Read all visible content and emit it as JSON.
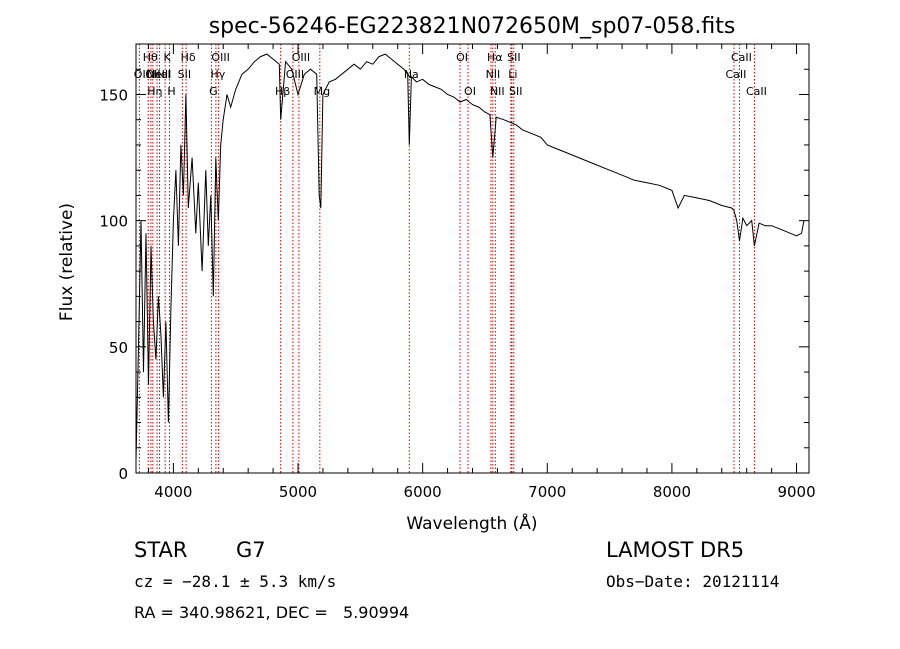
{
  "colors": {
    "background": "#ffffff",
    "axis": "#000000",
    "spectrum": "#000000",
    "line_marker": "#cc0000"
  },
  "chart_data": {
    "type": "line",
    "title": "spec-56246-EG223821N072650M_sp07-058.fits",
    "xlabel": "Wavelength (Å)",
    "ylabel": "Flux (relative)",
    "xlim": [
      3700,
      9100
    ],
    "ylim": [
      0,
      170
    ],
    "xticks": [
      4000,
      5000,
      6000,
      7000,
      8000,
      9000
    ],
    "yticks": [
      0,
      50,
      100,
      150
    ],
    "grid": false,
    "series": [
      {
        "x": [
          3700,
          3720,
          3740,
          3760,
          3780,
          3800,
          3820,
          3840,
          3860,
          3880,
          3900,
          3920,
          3940,
          3960,
          3980,
          4000,
          4020,
          4040,
          4060,
          4080,
          4100,
          4120,
          4150,
          4180,
          4200,
          4230,
          4260,
          4280,
          4300,
          4320,
          4340,
          4360,
          4380,
          4400,
          4430,
          4460,
          4500,
          4550,
          4600,
          4650,
          4700,
          4750,
          4800,
          4850,
          4861,
          4900,
          4950,
          5000,
          5050,
          5100,
          5150,
          5170,
          5183,
          5200,
          5250,
          5300,
          5350,
          5400,
          5450,
          5500,
          5550,
          5600,
          5650,
          5700,
          5750,
          5800,
          5850,
          5880,
          5893,
          5910,
          5950,
          6000,
          6050,
          6100,
          6150,
          6200,
          6250,
          6300,
          6350,
          6400,
          6450,
          6500,
          6540,
          6563,
          6590,
          6650,
          6700,
          6750,
          6800,
          6850,
          6900,
          6950,
          7000,
          7050,
          7100,
          7150,
          7200,
          7300,
          7400,
          7500,
          7600,
          7700,
          7800,
          7900,
          8000,
          8050,
          8100,
          8200,
          8300,
          8400,
          8480,
          8498,
          8520,
          8542,
          8570,
          8600,
          8640,
          8662,
          8700,
          8750,
          8800,
          8850,
          8900,
          8950,
          9000,
          9040,
          9060
        ],
        "y": [
          5,
          50,
          100,
          40,
          95,
          35,
          90,
          60,
          45,
          70,
          55,
          30,
          60,
          20,
          65,
          100,
          120,
          90,
          130,
          110,
          150,
          105,
          125,
          95,
          115,
          80,
          120,
          90,
          110,
          70,
          125,
          100,
          130,
          140,
          150,
          145,
          152,
          158,
          160,
          163,
          165,
          166,
          164,
          162,
          140,
          163,
          160,
          150,
          158,
          160,
          158,
          110,
          105,
          150,
          155,
          156,
          158,
          160,
          162,
          160,
          163,
          162,
          165,
          166,
          164,
          162,
          160,
          158,
          130,
          157,
          155,
          156,
          154,
          153,
          152,
          150,
          149,
          147,
          148,
          146,
          145,
          143,
          142,
          125,
          141,
          140,
          139,
          138,
          136,
          135,
          134,
          133,
          130,
          129,
          128,
          127,
          126,
          124,
          122,
          120,
          118,
          116,
          115,
          114,
          112,
          105,
          110,
          109,
          108,
          106,
          105,
          104,
          100,
          92,
          101,
          98,
          100,
          90,
          99,
          98,
          98,
          97,
          96,
          95,
          94,
          95,
          100
        ]
      }
    ],
    "lines": [
      {
        "x": 3727,
        "label": "OII",
        "row": 2
      },
      {
        "x": 3798,
        "label": "Hθ",
        "row": 1
      },
      {
        "x": 3820,
        "label": "OII",
        "row": 2
      },
      {
        "x": 3835,
        "label": "Hη",
        "row": 3
      },
      {
        "x": 3869,
        "label": "NeIII",
        "row": 2
      },
      {
        "x": 3889,
        "label": "HeI",
        "row": 2
      },
      {
        "x": 3934,
        "label": "K",
        "row": 1
      },
      {
        "x": 3969,
        "label": "H",
        "row": 3
      },
      {
        "x": 4072,
        "label": "SII",
        "row": 2
      },
      {
        "x": 4102,
        "label": "Hδ",
        "row": 1
      },
      {
        "x": 4305,
        "label": "G",
        "row": 3
      },
      {
        "x": 4341,
        "label": "Hγ",
        "row": 2
      },
      {
        "x": 4363,
        "label": "OIII",
        "row": 1
      },
      {
        "x": 4861,
        "label": "Hβ",
        "row": 3
      },
      {
        "x": 4959,
        "label": "OIII",
        "row": 2
      },
      {
        "x": 5007,
        "label": "OIII",
        "row": 1
      },
      {
        "x": 5175,
        "label": "Mg",
        "row": 3
      },
      {
        "x": 5893,
        "label": "Na",
        "row": 2
      },
      {
        "x": 6300,
        "label": "OI",
        "row": 1
      },
      {
        "x": 6364,
        "label": "OI",
        "row": 3
      },
      {
        "x": 6548,
        "label": "NII",
        "row": 2
      },
      {
        "x": 6563,
        "label": "Hα",
        "row": 1
      },
      {
        "x": 6583,
        "label": "NII",
        "row": 3
      },
      {
        "x": 6708,
        "label": "Li",
        "row": 2
      },
      {
        "x": 6716,
        "label": "SII",
        "row": 1
      },
      {
        "x": 6731,
        "label": "SII",
        "row": 3
      },
      {
        "x": 8498,
        "label": "CaII",
        "row": 2
      },
      {
        "x": 8542,
        "label": "CaII",
        "row": 1
      },
      {
        "x": 8662,
        "label": "CaII",
        "row": 3
      }
    ]
  },
  "footer": {
    "class_label": "STAR",
    "subclass": "G7",
    "survey": "LAMOST DR5",
    "redshift": "cz = −28.1 ± 5.3 km/s",
    "obs_date": "Obs−Date: 20121114",
    "coords": "RA = 340.98621, DEC =   5.90994"
  }
}
